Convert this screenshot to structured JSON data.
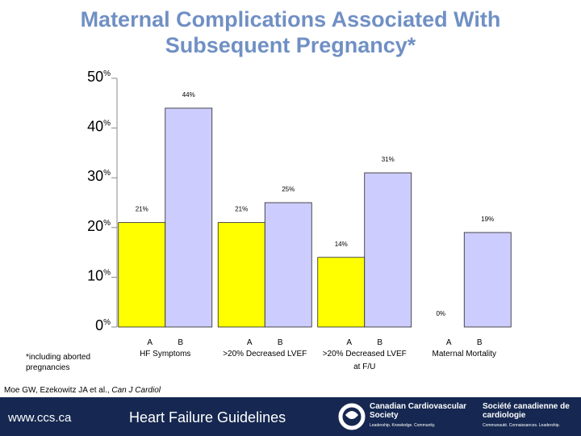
{
  "chart_data": {
    "type": "bar",
    "title": "Maternal Complications Associated With Subsequent Pregnancy*",
    "categories": [
      "HF Symptoms",
      ">20% Decreased LVEF",
      ">20% Decreased LVEF at F/U",
      "Maternal Mortality"
    ],
    "series": [
      {
        "name": "A",
        "color": "#ffff00",
        "values": [
          21,
          21,
          14,
          0
        ],
        "value_labels": [
          "21%",
          "21%",
          "14%",
          "0%"
        ]
      },
      {
        "name": "B",
        "color": "#ccccff",
        "values": [
          44,
          25,
          31,
          19
        ],
        "value_labels": [
          "44%",
          "25%",
          "31%",
          "19%"
        ]
      }
    ],
    "ylim": [
      0,
      50
    ],
    "yticks": [
      {
        "value": 0,
        "label": "0%"
      },
      {
        "value": 10,
        "label": "10%"
      },
      {
        "value": 20,
        "label": "20%"
      },
      {
        "value": 30,
        "label": "30%"
      },
      {
        "value": 40,
        "label": "40%"
      },
      {
        "value": 50,
        "label": "50%"
      }
    ],
    "grid": false,
    "footnote": "*including aborted pregnancies",
    "citation": "Moe GW, Ezekowitz JA et al.,",
    "journal": "Can J Cardiol"
  },
  "footer": {
    "url": "www.ccs.ca",
    "title": "Heart Failure Guidelines",
    "org_en": "Canadian Cardiovascular Society",
    "motto_en": "Leadership. Knowledge. Community.",
    "org_fr": "Société canadienne de cardiologie",
    "motto_fr": "Communauté. Connaissances. Leadership."
  }
}
